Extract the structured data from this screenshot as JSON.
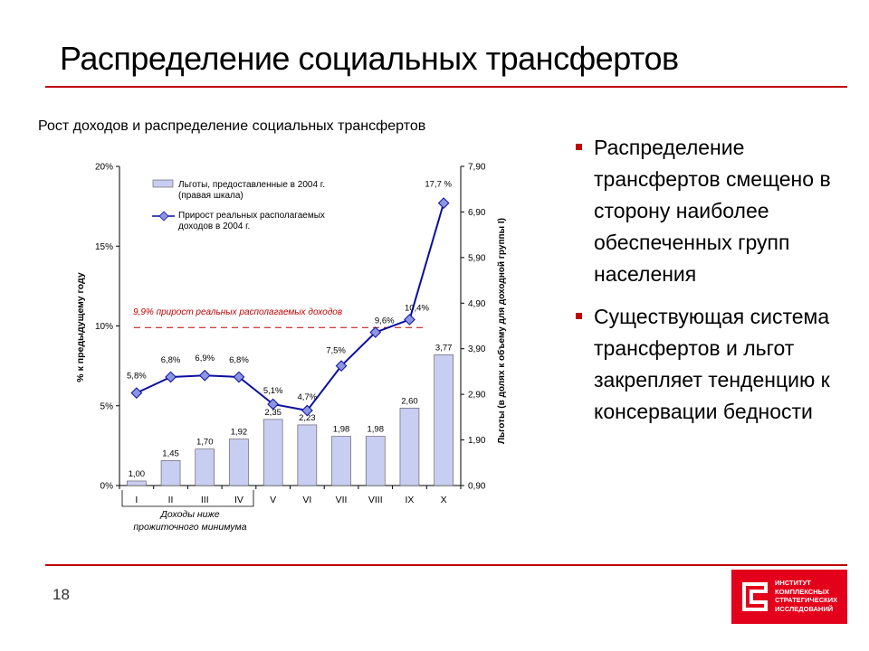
{
  "slide": {
    "title": "Распределение социальных трансфертов",
    "subtitle": "Рост доходов и распределение социальных трансфертов",
    "page_number": "18",
    "accent_color": "#c00000",
    "bullets": [
      "Распределение трансфертов смещено в сторону наиболее обеспеченных групп населения",
      "Существующая система трансфертов и льгот закрепляет тенденцию к консервации бедности"
    ],
    "logo_text": [
      "ИНСТИТУТ",
      "КОМПЛЕКСНЫХ",
      "СТРАТЕГИЧЕСКИХ",
      "ИССЛЕДОВАНИЙ"
    ]
  },
  "chart_data": {
    "type": "bar+line",
    "categories": [
      "I",
      "II",
      "III",
      "IV",
      "V",
      "VI",
      "VII",
      "VIII",
      "IX",
      "X"
    ],
    "series": [
      {
        "name": "Льготы, предоставленные в 2004 г. (правая шкала)",
        "type": "bar",
        "axis": "right",
        "values": [
          1.0,
          1.45,
          1.7,
          1.92,
          2.35,
          2.23,
          1.98,
          1.98,
          2.6,
          3.77
        ],
        "labels": [
          "1,00",
          "1,45",
          "1,70",
          "1,92",
          "2,35",
          "2,23",
          "1,98",
          "1,98",
          "2,60",
          "3,77"
        ],
        "color": "#c8cdf2"
      },
      {
        "name": "Прирост реальных располагаемых доходов в 2004 г.",
        "type": "line",
        "axis": "left",
        "values": [
          5.8,
          6.8,
          6.9,
          6.8,
          5.1,
          4.7,
          7.5,
          9.6,
          10.4,
          17.7
        ],
        "labels": [
          "5,8%",
          "6,8%",
          "6,9%",
          "6,8%",
          "5,1%",
          "4,7%",
          "7,5%",
          "9,6%",
          "10,4%",
          "17,7 %"
        ],
        "color": "#0b0f9e"
      }
    ],
    "left_axis": {
      "label": "% к предыдущему году",
      "range": [
        0,
        20
      ],
      "ticks": [
        0,
        5,
        10,
        15,
        20
      ],
      "tick_labels": [
        "0%",
        "5%",
        "10%",
        "15%",
        "20%"
      ]
    },
    "right_axis": {
      "label": "Льготы (в долях к объему для доходной группы I)",
      "range": [
        0.9,
        7.9
      ],
      "ticks": [
        0.9,
        1.9,
        2.9,
        3.9,
        4.9,
        5.9,
        6.9,
        7.9
      ],
      "tick_labels": [
        "0,90",
        "1,90",
        "2,90",
        "3,90",
        "4,90",
        "5,90",
        "6,90",
        "7,90"
      ]
    },
    "reference_line": {
      "value": 9.9,
      "label": "9,9% прирост реальных располагаемых доходов",
      "color": "#c00000"
    },
    "bracket_label": [
      "Доходы ниже",
      "прожиточного минимума"
    ],
    "legend_position": "top-left"
  }
}
